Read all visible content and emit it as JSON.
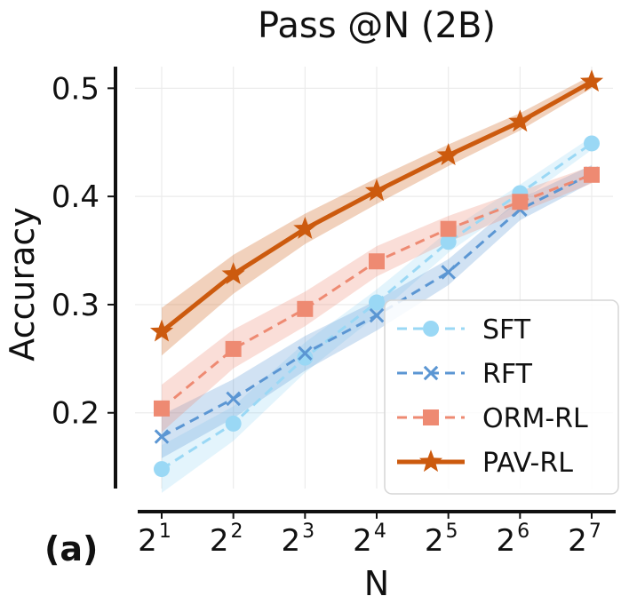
{
  "chart_data": {
    "type": "line",
    "title": "Pass @N (2B)",
    "xlabel": "N",
    "ylabel": "Accuracy",
    "panel_label": "(a)",
    "x": [
      1,
      2,
      3,
      4,
      5,
      6,
      7
    ],
    "x_tick_base": "2",
    "x_tick_exponents": [
      "1",
      "2",
      "3",
      "4",
      "5",
      "6",
      "7"
    ],
    "ylim": [
      0.13,
      0.52
    ],
    "y_ticks": [
      0.2,
      0.3,
      0.4,
      0.5
    ],
    "y_tick_labels": [
      "0.2",
      "0.3",
      "0.4",
      "0.5"
    ],
    "grid": true,
    "legend_position": "lower-right",
    "series": [
      {
        "name": "SFT",
        "marker": "circle",
        "style": "dashed",
        "color": "#9ad8f5",
        "values": [
          0.148,
          0.19,
          0.251,
          0.302,
          0.358,
          0.403,
          0.449
        ],
        "band": [
          0.022,
          0.016,
          0.014,
          0.012,
          0.01,
          0.008,
          0.006
        ]
      },
      {
        "name": "RFT",
        "marker": "x",
        "style": "dashed",
        "color": "#5b96d3",
        "values": [
          0.178,
          0.213,
          0.255,
          0.29,
          0.33,
          0.388,
          0.421
        ],
        "band": [
          0.02,
          0.018,
          0.016,
          0.014,
          0.012,
          0.01,
          0.008
        ]
      },
      {
        "name": "ORM-RL",
        "marker": "square",
        "style": "dashed",
        "color": "#ee8a72",
        "values": [
          0.204,
          0.259,
          0.296,
          0.34,
          0.37,
          0.395,
          0.42
        ],
        "band": [
          0.022,
          0.018,
          0.016,
          0.014,
          0.012,
          0.01,
          0.008
        ]
      },
      {
        "name": "PAV-RL",
        "marker": "star",
        "style": "solid",
        "color": "#cc5a0e",
        "values": [
          0.275,
          0.328,
          0.37,
          0.405,
          0.438,
          0.469,
          0.506
        ],
        "band": [
          0.022,
          0.018,
          0.014,
          0.012,
          0.01,
          0.008,
          0.006
        ]
      }
    ]
  }
}
